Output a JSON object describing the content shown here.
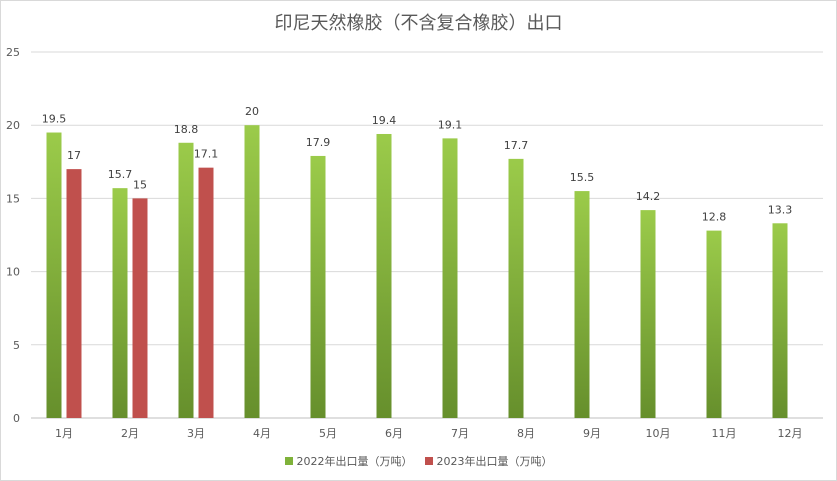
{
  "chart_data": {
    "type": "bar",
    "title": "印尼天然橡胶（不含复合橡胶）出口",
    "xlabel": "",
    "ylabel": "",
    "categories": [
      "1月",
      "2月",
      "3月",
      "4月",
      "5月",
      "6月",
      "7月",
      "8月",
      "9月",
      "10月",
      "11月",
      "12月"
    ],
    "series": [
      {
        "name": "2022年出口量（万吨）",
        "color": "#7fb23a",
        "values": [
          19.5,
          15.7,
          18.8,
          20,
          17.9,
          19.4,
          19.1,
          17.7,
          15.5,
          14.2,
          12.8,
          13.3
        ]
      },
      {
        "name": "2023年出口量（万吨）",
        "color": "#c0504d",
        "values": [
          17,
          15,
          17.1,
          null,
          null,
          null,
          null,
          null,
          null,
          null,
          null,
          null
        ]
      }
    ],
    "ylim": [
      0,
      25
    ],
    "yticks": [
      0,
      5,
      10,
      15,
      20,
      25
    ],
    "grid": true,
    "legend": "bottom"
  }
}
